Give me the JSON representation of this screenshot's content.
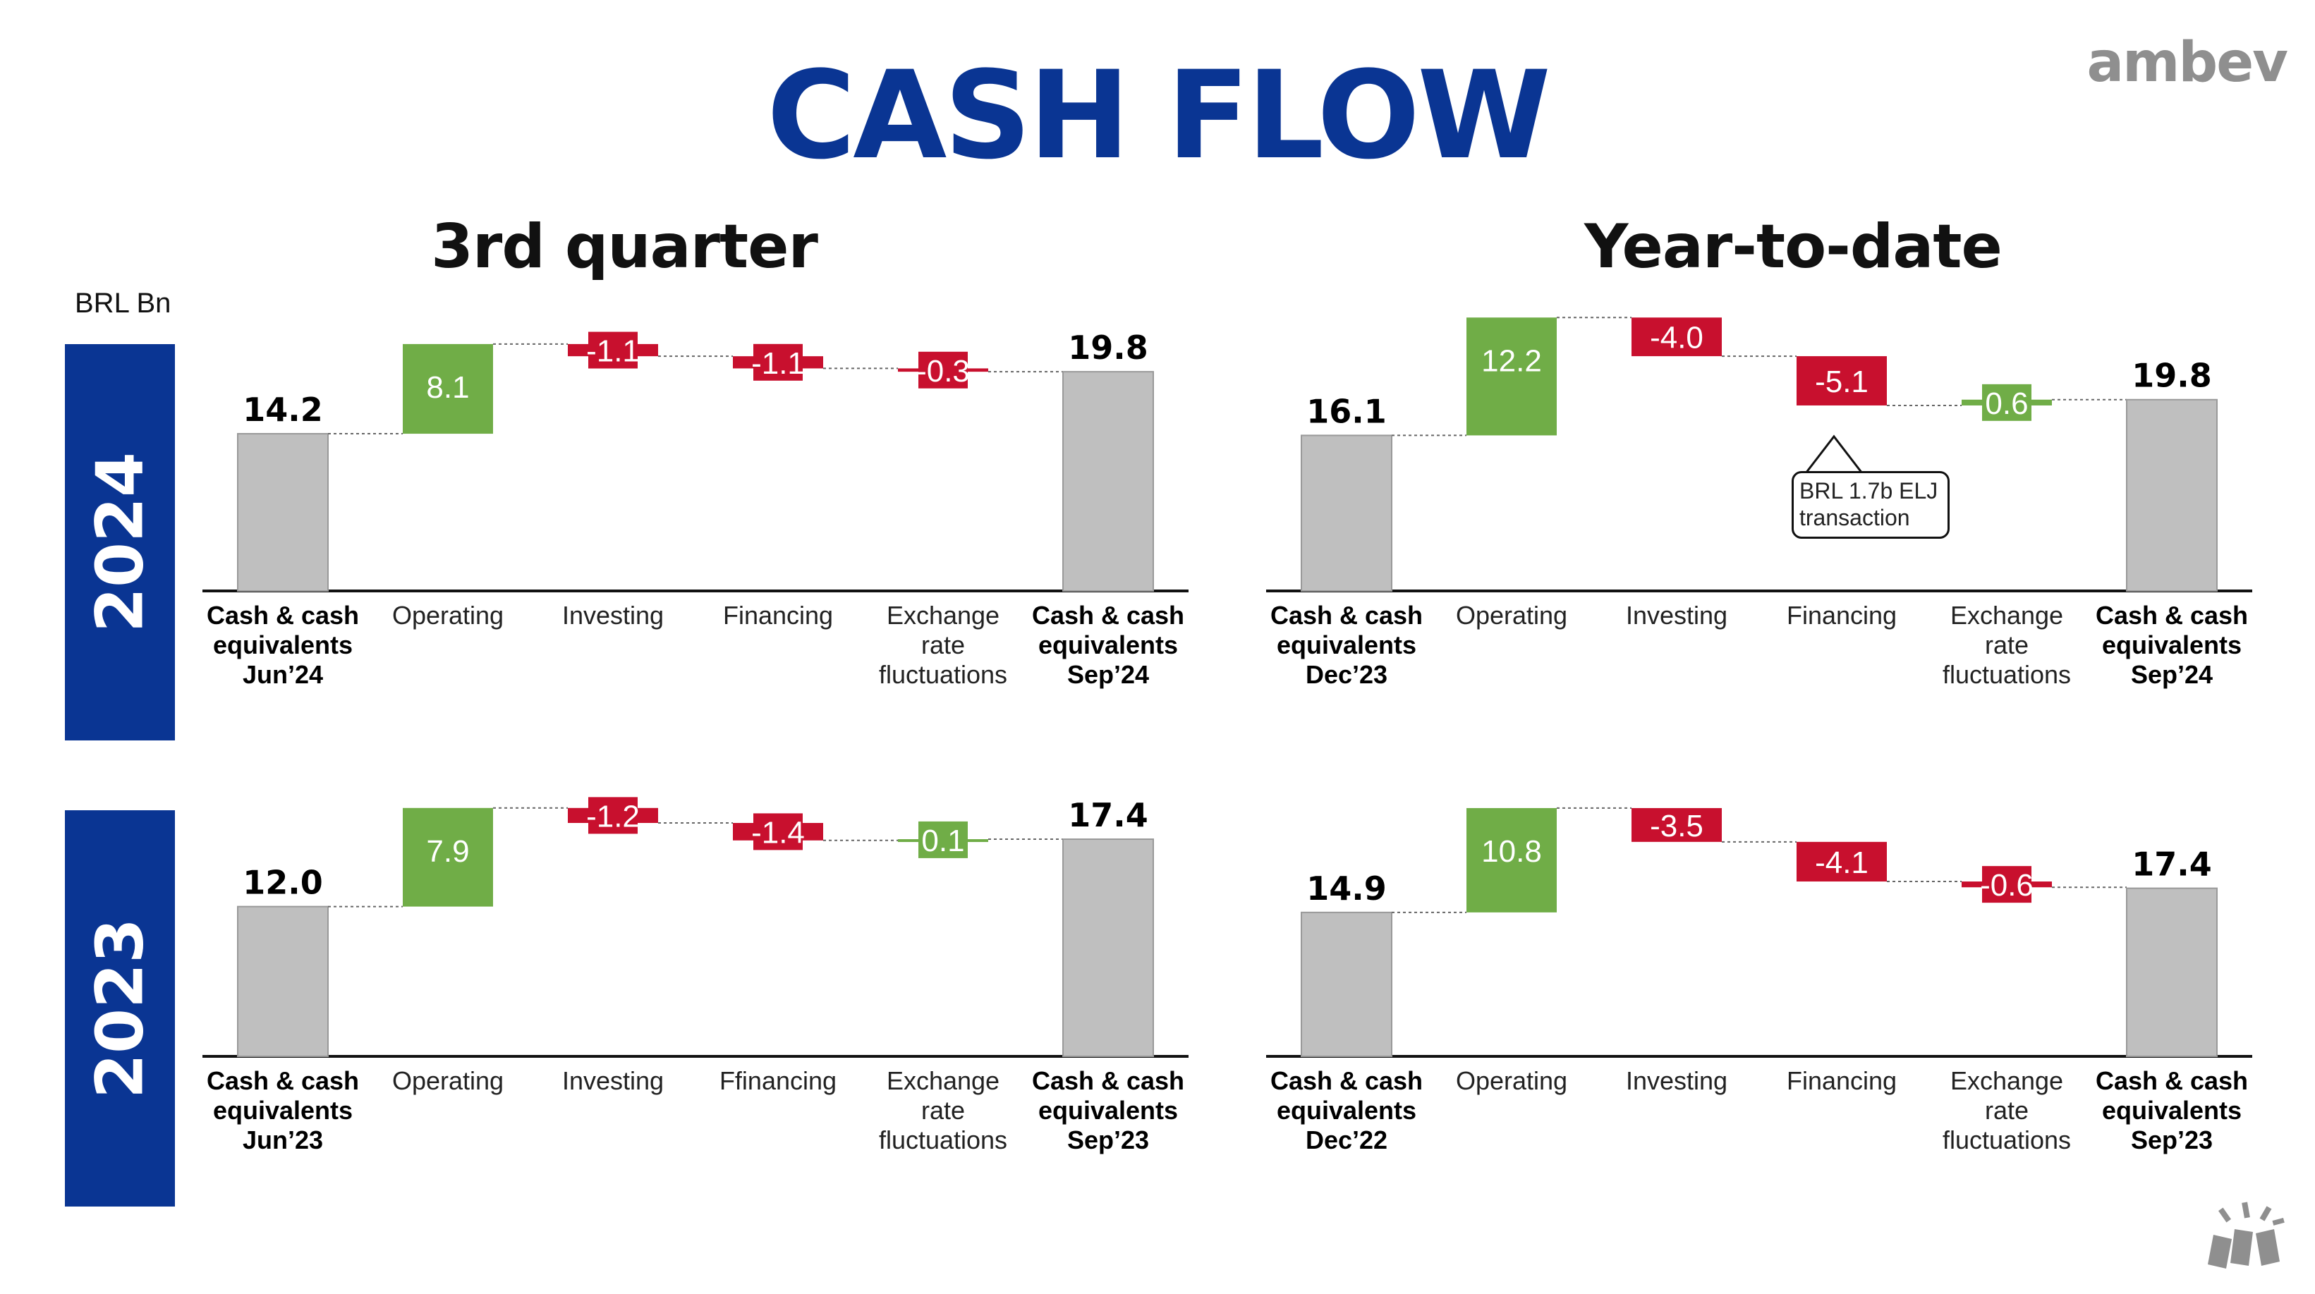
{
  "title": "CASH FLOW",
  "logo": "ambev",
  "unit": "BRL Bn",
  "section_titles": {
    "left": "3rd quarter",
    "right": "Year-to-date"
  },
  "years": [
    "2024",
    "2023"
  ],
  "colors": {
    "brand": "#0a3593",
    "positive": "#70ad47",
    "negative": "#c8102e",
    "total": "#bfbfbf"
  },
  "callout": {
    "line1": "BRL 1.7b ELJ",
    "line2": "transaction"
  },
  "chart_data": [
    {
      "id": "q3-2024",
      "type": "waterfall",
      "panel": "3rd quarter",
      "year": "2024",
      "ylim": [
        0,
        22
      ],
      "categories": [
        "Cash & cash\nequivalents\nJun’24",
        "Operating",
        "Investing",
        "Financing",
        "Exchange\nrate\nfluctuations",
        "Cash & cash\nequivalents\nSep’24"
      ],
      "steps": [
        {
          "kind": "total",
          "value": 14.2,
          "label": "14.2"
        },
        {
          "kind": "delta",
          "value": 8.1,
          "label": "8.1"
        },
        {
          "kind": "delta",
          "value": -1.1,
          "label": "-1.1"
        },
        {
          "kind": "delta",
          "value": -1.1,
          "label": "-1.1"
        },
        {
          "kind": "delta",
          "value": -0.3,
          "label": "-0.3"
        },
        {
          "kind": "total",
          "value": 19.8,
          "label": "19.8"
        }
      ]
    },
    {
      "id": "ytd-2024",
      "type": "waterfall",
      "panel": "Year-to-date",
      "year": "2024",
      "ylim": [
        0,
        22
      ],
      "categories": [
        "Cash & cash\nequivalents\nDec’23",
        "Operating",
        "Investing",
        "Financing",
        "Exchange\nrate\nfluctuations",
        "Cash & cash\nequivalents\nSep’24"
      ],
      "steps": [
        {
          "kind": "total",
          "value": 16.1,
          "label": "16.1"
        },
        {
          "kind": "delta",
          "value": 12.2,
          "label": "12.2"
        },
        {
          "kind": "delta",
          "value": -4.0,
          "label": "-4.0"
        },
        {
          "kind": "delta",
          "value": -5.1,
          "label": "-5.1"
        },
        {
          "kind": "delta",
          "value": 0.6,
          "label": "0.6"
        },
        {
          "kind": "total",
          "value": 19.8,
          "label": "19.8"
        }
      ]
    },
    {
      "id": "q3-2023",
      "type": "waterfall",
      "panel": "3rd quarter",
      "year": "2023",
      "ylim": [
        0,
        22
      ],
      "categories": [
        "Cash & cash\nequivalents\nJun’23",
        "Operating",
        "Investing",
        "Ffinancing",
        "Exchange\nrate\nfluctuations",
        "Cash & cash\nequivalents\nSep’23"
      ],
      "steps": [
        {
          "kind": "total",
          "value": 12.0,
          "label": "12.0"
        },
        {
          "kind": "delta",
          "value": 7.9,
          "label": "7.9"
        },
        {
          "kind": "delta",
          "value": -1.2,
          "label": "-1.2"
        },
        {
          "kind": "delta",
          "value": -1.4,
          "label": "-1.4"
        },
        {
          "kind": "delta",
          "value": 0.1,
          "label": "0.1"
        },
        {
          "kind": "total",
          "value": 17.4,
          "label": "17.4"
        }
      ]
    },
    {
      "id": "ytd-2023",
      "type": "waterfall",
      "panel": "Year-to-date",
      "year": "2023",
      "ylim": [
        0,
        22
      ],
      "categories": [
        "Cash & cash\nequivalents\nDec’22",
        "Operating",
        "Investing",
        "Financing",
        "Exchange\nrate\nfluctuations",
        "Cash & cash\nequivalents\nSep’23"
      ],
      "steps": [
        {
          "kind": "total",
          "value": 14.9,
          "label": "14.9"
        },
        {
          "kind": "delta",
          "value": 10.8,
          "label": "10.8"
        },
        {
          "kind": "delta",
          "value": -3.5,
          "label": "-3.5"
        },
        {
          "kind": "delta",
          "value": -4.1,
          "label": "-4.1"
        },
        {
          "kind": "delta",
          "value": -0.6,
          "label": "-0.6"
        },
        {
          "kind": "total",
          "value": 17.4,
          "label": "17.4"
        }
      ]
    }
  ]
}
